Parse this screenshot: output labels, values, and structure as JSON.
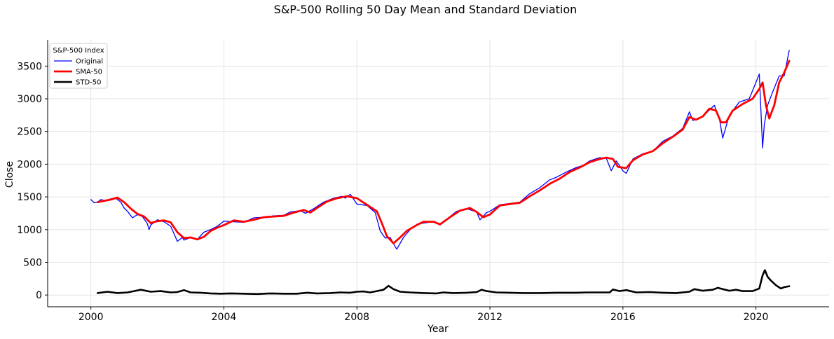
{
  "chart_data": {
    "type": "line",
    "title": "S&P-500 Rolling 50 Day Mean and Standard Deviation",
    "xlabel": "Year",
    "ylabel": "Close",
    "xlim": [
      1998.7,
      2022.2
    ],
    "ylim": [
      -180,
      3900
    ],
    "x_ticks": [
      2000,
      2004,
      2008,
      2012,
      2016,
      2020
    ],
    "x_tick_labels": [
      "2000",
      "2004",
      "2008",
      "2012",
      "2016",
      "2020"
    ],
    "y_ticks": [
      0,
      500,
      1000,
      1500,
      2000,
      2500,
      3000,
      3500
    ],
    "y_tick_labels": [
      "0",
      "500",
      "1000",
      "1500",
      "2000",
      "2500",
      "3000",
      "3500"
    ],
    "grid": true,
    "legend": {
      "title": "S&P-500 Index",
      "position": "top-left"
    },
    "series": [
      {
        "name": "Original",
        "color": "#0000ff",
        "x": [
          2000.0,
          2000.1,
          2000.2,
          2000.3,
          2000.45,
          2000.6,
          2000.75,
          2000.9,
          2001.0,
          2001.1,
          2001.25,
          2001.4,
          2001.55,
          2001.7,
          2001.75,
          2001.8,
          2002.0,
          2002.2,
          2002.4,
          2002.55,
          2002.6,
          2002.75,
          2002.8,
          2003.0,
          2003.2,
          2003.4,
          2003.6,
          2003.8,
          2004.0,
          2004.3,
          2004.6,
          2004.9,
          2005.2,
          2005.5,
          2005.8,
          2006.0,
          2006.3,
          2006.45,
          2006.7,
          2007.0,
          2007.3,
          2007.55,
          2007.65,
          2007.8,
          2008.0,
          2008.3,
          2008.55,
          2008.7,
          2008.85,
          2009.0,
          2009.15,
          2009.2,
          2009.4,
          2009.6,
          2009.8,
          2010.0,
          2010.3,
          2010.5,
          2010.8,
          2011.0,
          2011.3,
          2011.6,
          2011.7,
          2011.9,
          2012.0,
          2012.3,
          2012.6,
          2012.9,
          2013.2,
          2013.5,
          2013.8,
          2014.0,
          2014.3,
          2014.6,
          2014.8,
          2015.0,
          2015.3,
          2015.5,
          2015.65,
          2015.8,
          2016.0,
          2016.1,
          2016.3,
          2016.6,
          2016.9,
          2017.2,
          2017.5,
          2017.8,
          2018.0,
          2018.1,
          2018.3,
          2018.5,
          2018.75,
          2018.9,
          2019.0,
          2019.2,
          2019.5,
          2019.8,
          2020.0,
          2020.1,
          2020.2,
          2020.25,
          2020.35,
          2020.5,
          2020.7,
          2020.85,
          2021.0
        ],
        "values": [
          1460,
          1410,
          1420,
          1460,
          1440,
          1470,
          1480,
          1420,
          1330,
          1280,
          1180,
          1230,
          1200,
          1090,
          1000,
          1070,
          1150,
          1120,
          1050,
          880,
          820,
          880,
          840,
          880,
          850,
          960,
          1000,
          1050,
          1130,
          1120,
          1110,
          1180,
          1190,
          1210,
          1220,
          1270,
          1290,
          1250,
          1320,
          1420,
          1480,
          1510,
          1480,
          1540,
          1390,
          1370,
          1260,
          980,
          870,
          880,
          740,
          700,
          880,
          1000,
          1080,
          1100,
          1120,
          1070,
          1200,
          1280,
          1320,
          1270,
          1150,
          1260,
          1280,
          1380,
          1400,
          1420,
          1550,
          1640,
          1760,
          1800,
          1880,
          1950,
          1980,
          2050,
          2100,
          2090,
          1900,
          2050,
          1900,
          1860,
          2080,
          2160,
          2200,
          2350,
          2430,
          2550,
          2800,
          2670,
          2700,
          2780,
          2900,
          2700,
          2400,
          2750,
          2950,
          3000,
          3250,
          3380,
          2250,
          2600,
          2900,
          3100,
          3350,
          3350,
          3740
        ]
      },
      {
        "name": "SMA-50",
        "color": "#ff0000",
        "x": [
          2000.2,
          2000.4,
          2000.6,
          2000.8,
          2001.0,
          2001.2,
          2001.4,
          2001.6,
          2001.8,
          2002.0,
          2002.2,
          2002.4,
          2002.6,
          2002.8,
          2003.0,
          2003.2,
          2003.4,
          2003.6,
          2003.8,
          2004.0,
          2004.3,
          2004.6,
          2004.9,
          2005.2,
          2005.5,
          2005.8,
          2006.1,
          2006.4,
          2006.6,
          2006.8,
          2007.1,
          2007.4,
          2007.7,
          2008.0,
          2008.3,
          2008.6,
          2008.75,
          2008.9,
          2009.1,
          2009.3,
          2009.5,
          2009.8,
          2010.0,
          2010.3,
          2010.5,
          2010.8,
          2011.1,
          2011.4,
          2011.6,
          2011.8,
          2012.0,
          2012.3,
          2012.6,
          2012.9,
          2013.2,
          2013.5,
          2013.8,
          2014.1,
          2014.4,
          2014.7,
          2015.0,
          2015.3,
          2015.5,
          2015.7,
          2015.85,
          2016.1,
          2016.3,
          2016.6,
          2016.9,
          2017.2,
          2017.5,
          2017.8,
          2018.0,
          2018.2,
          2018.4,
          2018.6,
          2018.8,
          2018.95,
          2019.1,
          2019.3,
          2019.6,
          2019.9,
          2020.1,
          2020.2,
          2020.3,
          2020.4,
          2020.55,
          2020.7,
          2020.85,
          2021.0
        ],
        "values": [
          1420,
          1440,
          1460,
          1490,
          1420,
          1320,
          1240,
          1200,
          1100,
          1130,
          1140,
          1110,
          960,
          870,
          880,
          850,
          890,
          980,
          1030,
          1070,
          1140,
          1120,
          1150,
          1190,
          1200,
          1210,
          1260,
          1300,
          1260,
          1330,
          1430,
          1480,
          1510,
          1480,
          1380,
          1280,
          1100,
          900,
          790,
          880,
          980,
          1070,
          1120,
          1120,
          1080,
          1190,
          1290,
          1330,
          1270,
          1190,
          1230,
          1370,
          1390,
          1410,
          1510,
          1600,
          1700,
          1780,
          1880,
          1950,
          2030,
          2080,
          2100,
          2080,
          1960,
          1940,
          2060,
          2150,
          2200,
          2320,
          2420,
          2530,
          2720,
          2680,
          2730,
          2850,
          2820,
          2640,
          2640,
          2820,
          2920,
          3000,
          3150,
          3250,
          2900,
          2700,
          2900,
          3250,
          3400,
          3580
        ]
      },
      {
        "name": "STD-50",
        "color": "#000000",
        "x": [
          2000.2,
          2000.5,
          2000.8,
          2001.1,
          2001.3,
          2001.5,
          2001.8,
          2002.1,
          2002.4,
          2002.6,
          2002.8,
          2003.0,
          2003.3,
          2003.6,
          2003.9,
          2004.2,
          2004.6,
          2005.0,
          2005.4,
          2005.8,
          2006.2,
          2006.5,
          2006.8,
          2007.2,
          2007.5,
          2007.8,
          2008.0,
          2008.2,
          2008.4,
          2008.6,
          2008.8,
          2008.95,
          2009.1,
          2009.3,
          2009.6,
          2010.0,
          2010.4,
          2010.6,
          2010.9,
          2011.3,
          2011.6,
          2011.75,
          2011.9,
          2012.2,
          2012.6,
          2013.0,
          2013.5,
          2014.0,
          2014.3,
          2014.6,
          2014.9,
          2015.2,
          2015.6,
          2015.7,
          2015.9,
          2016.1,
          2016.4,
          2016.8,
          2017.2,
          2017.6,
          2018.0,
          2018.15,
          2018.4,
          2018.7,
          2018.85,
          2019.0,
          2019.2,
          2019.4,
          2019.6,
          2019.9,
          2020.1,
          2020.2,
          2020.27,
          2020.35,
          2020.45,
          2020.6,
          2020.75,
          2020.85,
          2021.0
        ],
        "values": [
          30,
          50,
          30,
          40,
          60,
          80,
          50,
          60,
          40,
          45,
          75,
          40,
          35,
          25,
          20,
          25,
          20,
          15,
          25,
          20,
          20,
          35,
          25,
          30,
          40,
          35,
          50,
          55,
          40,
          60,
          80,
          140,
          90,
          50,
          40,
          30,
          25,
          40,
          30,
          35,
          45,
          80,
          60,
          40,
          35,
          30,
          30,
          35,
          35,
          35,
          40,
          40,
          40,
          85,
          60,
          75,
          40,
          45,
          35,
          30,
          50,
          90,
          65,
          80,
          110,
          90,
          65,
          80,
          60,
          60,
          100,
          300,
          380,
          280,
          220,
          150,
          100,
          120,
          135
        ]
      }
    ]
  }
}
